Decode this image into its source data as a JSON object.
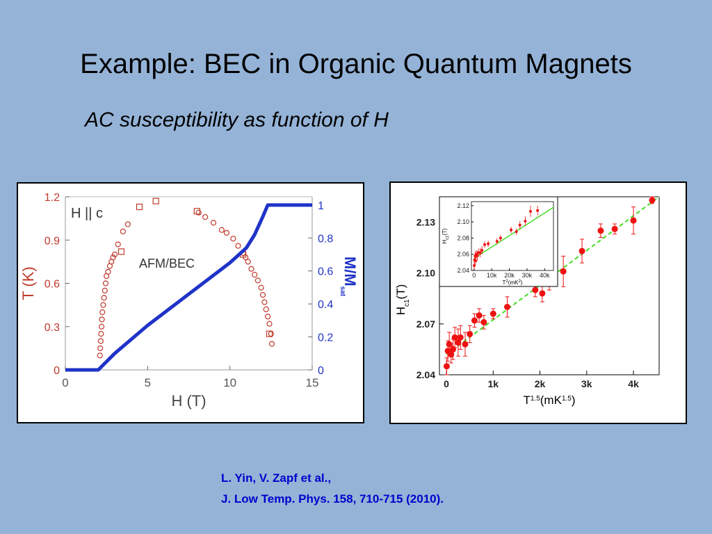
{
  "slide": {
    "title": "Example:  BEC in Organic Quantum Magnets",
    "subtitle": "AC susceptibility  as function of H",
    "reference_line1": "L. Yin, V. Zapf et al.,",
    "reference_line2": "J. Low Temp. Phys.  158,  710-715 (2010)."
  },
  "colors": {
    "background": "#95b3d7",
    "red": "#c0392b",
    "blue": "#1f33c8",
    "marker_red": "#ee1111",
    "fit_green": "#44dd22"
  },
  "chart_data": [
    {
      "type": "scatter",
      "annotation_field": "H || c",
      "annotation_region": "AFM/BEC",
      "xlabel": "H (T)",
      "ylabel_left": "T (K)",
      "ylabel_right": "M/M",
      "ylabel_right_sub": "sat",
      "xlim": [
        0,
        15
      ],
      "ylim_left": [
        0,
        1.2
      ],
      "ylim_right": [
        0,
        1.05
      ],
      "x_ticks": [
        "0",
        "5",
        "10",
        "15"
      ],
      "y_ticks_left": [
        "0",
        "0.3",
        "0.6",
        "0.9",
        "1.2"
      ],
      "y_ticks_right": [
        "0",
        "0.2",
        "0.4",
        "0.6",
        "0.8",
        "1"
      ],
      "series": [
        {
          "axis": "left",
          "marker": "circle",
          "color": "#c0392b",
          "x": [
            2.1,
            2.12,
            2.15,
            2.17,
            2.2,
            2.22,
            2.25,
            2.3,
            2.35,
            2.4,
            2.45,
            2.5,
            2.6,
            2.7,
            2.8,
            2.9,
            3.0,
            3.2,
            3.5,
            3.8,
            8.1,
            8.5,
            9.0,
            9.5,
            9.8,
            10.2,
            10.5,
            10.8,
            10.95,
            11.1,
            11.3,
            11.5,
            11.7,
            11.9,
            12.0,
            12.1,
            12.2,
            12.3,
            12.4,
            12.5,
            12.55
          ],
          "y": [
            0.1,
            0.15,
            0.2,
            0.25,
            0.3,
            0.35,
            0.4,
            0.45,
            0.5,
            0.55,
            0.6,
            0.65,
            0.68,
            0.72,
            0.75,
            0.78,
            0.8,
            0.87,
            0.96,
            1.01,
            1.09,
            1.06,
            1.02,
            0.97,
            0.95,
            0.91,
            0.86,
            0.81,
            0.78,
            0.75,
            0.7,
            0.66,
            0.62,
            0.57,
            0.52,
            0.47,
            0.42,
            0.37,
            0.32,
            0.25,
            0.18
          ]
        },
        {
          "axis": "left",
          "marker": "square",
          "color": "#c0392b",
          "x": [
            3.4,
            4.5,
            5.5,
            8.0,
            10.8,
            12.4
          ],
          "y": [
            0.82,
            1.13,
            1.17,
            1.1,
            0.8,
            0.25
          ]
        },
        {
          "axis": "right",
          "marker": "line",
          "color": "#1f33c8",
          "x": [
            0,
            2.0,
            2.3,
            3.0,
            5.0,
            10.0,
            11.0,
            11.5,
            12.0,
            12.3,
            15
          ],
          "y": [
            0,
            0,
            0.03,
            0.1,
            0.27,
            0.65,
            0.74,
            0.82,
            0.93,
            1.0,
            1.0
          ]
        }
      ]
    },
    {
      "type": "scatter",
      "xlabel": "T",
      "xlabel_sup": "1.5",
      "xlabel_unit": "(mK",
      "xlabel_unit_sup": "1.5",
      "xlabel_close": ")",
      "ylabel": "H",
      "ylabel_sub": "c1",
      "ylabel_unit": "(T)",
      "xlim": [
        -150,
        4550
      ],
      "ylim": [
        2.04,
        2.145
      ],
      "x_ticks": [
        "0",
        "1k",
        "2k",
        "3k",
        "4k"
      ],
      "y_ticks": [
        "2.04",
        "2.07",
        "2.10",
        "2.13"
      ],
      "fit": {
        "x0": 0,
        "y0": 2.052,
        "x1": 4550,
        "y1": 2.145,
        "style": "dashed",
        "color": "#44dd22"
      },
      "series": [
        {
          "marker": "circle",
          "color": "#ee1111",
          "x": [
            5,
            30,
            60,
            100,
            140,
            180,
            250,
            300,
            400,
            500,
            600,
            700,
            800,
            1000,
            1300,
            1900,
            2050,
            2200,
            2500,
            2900,
            3300,
            3600,
            4000,
            4400
          ],
          "y": [
            2.045,
            2.054,
            2.058,
            2.052,
            2.055,
            2.062,
            2.059,
            2.062,
            2.058,
            2.064,
            2.072,
            2.075,
            2.071,
            2.076,
            2.08,
            2.09,
            2.088,
            2.096,
            2.101,
            2.113,
            2.125,
            2.126,
            2.131,
            2.143
          ],
          "err": [
            0.005,
            0.006,
            0.007,
            0.005,
            0.006,
            0.006,
            0.008,
            0.007,
            0.007,
            0.005,
            0.004,
            0.004,
            0.004,
            0.003,
            0.006,
            0.004,
            0.005,
            0.006,
            0.009,
            0.007,
            0.004,
            0.003,
            0.008,
            0.002
          ]
        }
      ],
      "inset": {
        "xlabel": "T",
        "xlabel_sup": "2",
        "xlabel_unit": "(mK",
        "xlabel_unit_sup": "2",
        "xlabel_close": ")",
        "ylabel": "H",
        "ylabel_sub": "c1",
        "ylabel_unit": "(T)",
        "xlim": [
          -1500,
          45000
        ],
        "ylim": [
          2.04,
          2.125
        ],
        "x_ticks": [
          "0",
          "10k",
          "20k",
          "30k",
          "40k"
        ],
        "y_ticks": [
          "2.04",
          "2.06",
          "2.08",
          "2.10",
          "2.12"
        ],
        "fit": {
          "x0": 0,
          "y0": 2.055,
          "x1": 45000,
          "y1": 2.118
        },
        "series": [
          {
            "x": [
              100,
              300,
              600,
              900,
              1300,
              1800,
              2500,
              3500,
              4500,
              6000,
              8000,
              13000,
              15000,
              21000,
              24000,
              26000,
              29000,
              32000,
              36000
            ],
            "y": [
              2.046,
              2.053,
              2.058,
              2.052,
              2.06,
              2.058,
              2.062,
              2.062,
              2.065,
              2.072,
              2.073,
              2.076,
              2.08,
              2.09,
              2.088,
              2.096,
              2.101,
              2.113,
              2.114
            ],
            "err": [
              0.005,
              0.006,
              0.006,
              0.005,
              0.005,
              0.006,
              0.005,
              0.006,
              0.005,
              0.004,
              0.004,
              0.004,
              0.004,
              0.004,
              0.004,
              0.005,
              0.006,
              0.007,
              0.006
            ]
          }
        ]
      }
    }
  ]
}
